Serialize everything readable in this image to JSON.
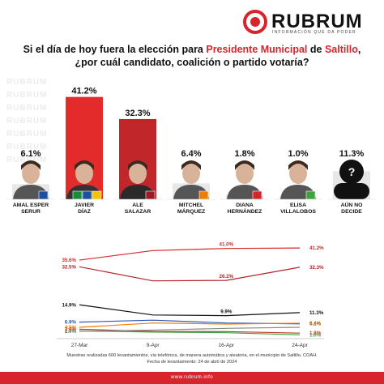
{
  "brand": {
    "name": "RUBRUM",
    "tagline": "INFORMACIÓN QUE DA PODER"
  },
  "question": {
    "before": "Si el día de hoy fuera la elección para ",
    "highlight1": "Presidente Municipal",
    "middle": " de ",
    "highlight2": "Saltillo",
    "after": ", ¿por cuál candidato, coalición o partido votaría?"
  },
  "watermark": "RUBRUM",
  "colors": {
    "accent": "#d7262b",
    "bar_red": "#e42b2b",
    "bar_dark_red": "#c0262a",
    "bar_gray": "#e7e7e7"
  },
  "chart_data": [
    {
      "type": "bar",
      "categories": [
        "AMAL ESPER SERUR",
        "JAVIER DÍAZ",
        "ALE SALAZAR",
        "MITCHEL MÁRQUEZ",
        "DIANA HERNÁNDEZ",
        "ELISA VILLALOBOS",
        "AÚN NO DECIDE"
      ],
      "category_lines": [
        [
          "AMAL ESPER",
          "SERUR"
        ],
        [
          "JAVIER",
          "DÍAZ"
        ],
        [
          "ALE",
          "SALAZAR"
        ],
        [
          "MITCHEL",
          "MÁRQUEZ"
        ],
        [
          "DIANA",
          "HERNÁNDEZ"
        ],
        [
          "ELISA",
          "VILLALOBOS"
        ],
        [
          "AÚN NO",
          "DECIDE"
        ]
      ],
      "values": [
        6.1,
        41.2,
        32.3,
        6.4,
        1.8,
        1.0,
        11.3
      ],
      "labels": [
        "6.1%",
        "41.2%",
        "32.3%",
        "6.4%",
        "1.8%",
        "1.0%",
        "11.3%"
      ],
      "highlight_colors": [
        "#e7e7e7",
        "#e42b2b",
        "#c0262a",
        "#e7e7e7",
        "#e7e7e7",
        "#e7e7e7",
        "#e7e7e7"
      ],
      "party_badges": [
        [
          {
            "icon": "pan-logo-icon",
            "color": "#1c4ea3"
          }
        ],
        [
          {
            "icon": "pri-logo-icon",
            "color": "#1b8a3a"
          },
          {
            "icon": "pan-logo-icon",
            "color": "#1c4ea3"
          },
          {
            "icon": "prd-logo-icon",
            "color": "#f2c300"
          }
        ],
        [
          {
            "icon": "morena-logo-icon",
            "color": "#9e1b23"
          }
        ],
        [
          {
            "icon": "mc-logo-icon",
            "color": "#f07d00"
          }
        ],
        [
          {
            "icon": "pt-logo-icon",
            "color": "#d7262b"
          }
        ],
        [
          {
            "icon": "pvem-logo-icon",
            "color": "#3ea33a"
          }
        ],
        []
      ],
      "ylim": [
        0,
        45
      ]
    },
    {
      "type": "line",
      "x": [
        "27-Mar",
        "9-Apr",
        "16-Apr",
        "24-Apr"
      ],
      "ylim": [
        0,
        45
      ],
      "series": [
        {
          "values": [
            35.6,
            40.0,
            41.0,
            41.2
          ],
          "color": "#d7262b",
          "labels": [
            "35.6%",
            "",
            "41.0%",
            "41.2%"
          ]
        },
        {
          "values": [
            32.5,
            26.0,
            26.2,
            32.3
          ],
          "color": "#b3232a",
          "labels": [
            "32.5%",
            "",
            "26.2%",
            "32.3%"
          ]
        },
        {
          "values": [
            14.9,
            10.2,
            9.9,
            11.3
          ],
          "color": "#111111",
          "labels": [
            "14.9%",
            "",
            "9.9%",
            "11.3%"
          ]
        },
        {
          "values": [
            6.9,
            7.8,
            6.5,
            6.1
          ],
          "color": "#2c56b3",
          "labels": [
            "6.9%",
            "",
            "",
            "6.1%"
          ]
        },
        {
          "values": [
            4.5,
            6.5,
            6.0,
            6.4
          ],
          "color": "#f07d00",
          "labels": [
            "4.5%",
            "",
            "",
            "6.4%"
          ]
        },
        {
          "values": [
            3.6,
            2.6,
            2.5,
            1.8
          ],
          "color": "#c0392b",
          "labels": [
            "3.6%",
            "",
            "",
            "1.8%"
          ]
        },
        {
          "values": [
            2.8,
            2.3,
            2.0,
            1.0
          ],
          "color": "#3ea33a",
          "labels": [
            "2.8%",
            "",
            "",
            "1.0%"
          ]
        },
        {
          "values": [
            2.7,
            3.2,
            4.0,
            4.5
          ],
          "color": "#8a8a8a",
          "labels": [
            "2.7%",
            "",
            "",
            ""
          ]
        }
      ]
    }
  ],
  "footnote": {
    "line1": "Muestras realizadas 600 levantamientos, vía telefónica, de manera automática y aleatoria, en el municipio de Saltillo, COAH.",
    "line2": "Fecha de levantamiento: 24 de abril de 2024"
  },
  "website": "www.rubrum.info"
}
